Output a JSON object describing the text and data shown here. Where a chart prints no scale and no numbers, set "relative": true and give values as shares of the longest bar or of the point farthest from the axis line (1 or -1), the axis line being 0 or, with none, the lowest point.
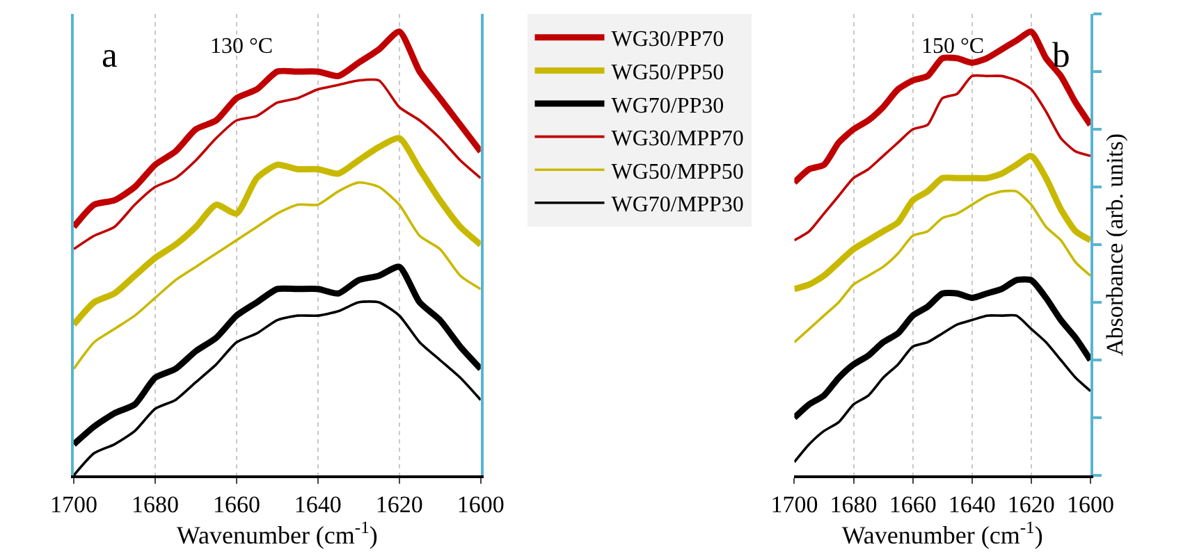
{
  "chart_data": [
    {
      "type": "line",
      "relative": true,
      "xlabel": "Wavenumber (cm$^{-1}$)",
      "annotations": [
        "a",
        "130 °C"
      ],
      "xlim": [
        1700,
        1600
      ],
      "xticks": [
        1700,
        1680,
        1660,
        1640,
        1620,
        1600
      ],
      "grid": "x",
      "legend": "right",
      "tick_labels": "x",
      "line_style": "solid",
      "x": [
        1700,
        1695,
        1690,
        1685,
        1680,
        1675,
        1670,
        1665,
        1660,
        1655,
        1650,
        1645,
        1640,
        1635,
        1630,
        1625,
        1620,
        1615,
        1610,
        1605,
        1600
      ],
      "series": [
        {
          "name": "WG30/PP70",
          "color": "#c00000",
          "values": [
            0.56,
            0.61,
            0.62,
            0.65,
            0.7,
            0.73,
            0.78,
            0.8,
            0.85,
            0.87,
            0.91,
            0.91,
            0.91,
            0.9,
            0.93,
            0.96,
            1.0,
            0.91,
            0.85,
            0.79,
            0.73
          ]
        },
        {
          "name": "WG50/PP50",
          "color": "#c8b900",
          "values": [
            0.34,
            0.39,
            0.41,
            0.45,
            0.49,
            0.52,
            0.56,
            0.61,
            0.59,
            0.67,
            0.7,
            0.69,
            0.69,
            0.68,
            0.71,
            0.74,
            0.76,
            0.69,
            0.62,
            0.56,
            0.52
          ]
        },
        {
          "name": "WG70/PP30",
          "color": "#000000",
          "values": [
            0.07,
            0.11,
            0.14,
            0.16,
            0.22,
            0.24,
            0.28,
            0.31,
            0.36,
            0.39,
            0.42,
            0.42,
            0.42,
            0.41,
            0.44,
            0.45,
            0.47,
            0.39,
            0.35,
            0.29,
            0.24
          ]
        },
        {
          "name": "WG30/MPP70",
          "color": "#c00000",
          "values": [
            0.51,
            0.54,
            0.56,
            0.61,
            0.65,
            0.67,
            0.71,
            0.76,
            0.8,
            0.81,
            0.84,
            0.85,
            0.87,
            0.88,
            0.89,
            0.89,
            0.83,
            0.8,
            0.76,
            0.71,
            0.67
          ]
        },
        {
          "name": "WG50/MPP50",
          "color": "#c8b900",
          "values": [
            0.24,
            0.3,
            0.33,
            0.36,
            0.4,
            0.44,
            0.47,
            0.5,
            0.53,
            0.56,
            0.59,
            0.61,
            0.61,
            0.64,
            0.66,
            0.65,
            0.61,
            0.54,
            0.51,
            0.45,
            0.42
          ]
        },
        {
          "name": "WG70/MPP30",
          "color": "#000000",
          "values": [
            0.0,
            0.05,
            0.07,
            0.1,
            0.15,
            0.17,
            0.21,
            0.25,
            0.3,
            0.32,
            0.35,
            0.36,
            0.36,
            0.37,
            0.39,
            0.39,
            0.36,
            0.3,
            0.26,
            0.22,
            0.17
          ]
        }
      ]
    },
    {
      "type": "line",
      "relative": true,
      "xlabel": "Wavenumber (cm$^{-1}$)",
      "ylabel": "Absorbance (arb. units)",
      "annotations": [
        "150 °C",
        "b"
      ],
      "xlim": [
        1700,
        1600
      ],
      "xticks": [
        1700,
        1680,
        1660,
        1640,
        1620,
        1600
      ],
      "grid": "x",
      "tick_labels": "x",
      "line_style": "solid",
      "x": [
        1700,
        1695,
        1690,
        1685,
        1680,
        1675,
        1670,
        1665,
        1660,
        1655,
        1650,
        1645,
        1640,
        1635,
        1630,
        1625,
        1620,
        1615,
        1610,
        1605,
        1600
      ],
      "series": [
        {
          "color": "#c00000",
          "values": [
            0.66,
            0.69,
            0.7,
            0.75,
            0.78,
            0.8,
            0.83,
            0.87,
            0.89,
            0.9,
            0.94,
            0.94,
            0.93,
            0.94,
            0.96,
            0.98,
            1.0,
            0.94,
            0.9,
            0.84,
            0.79
          ]
        },
        {
          "color": "#c8b900",
          "values": [
            0.42,
            0.43,
            0.45,
            0.48,
            0.51,
            0.53,
            0.55,
            0.57,
            0.62,
            0.64,
            0.67,
            0.67,
            0.67,
            0.67,
            0.68,
            0.7,
            0.72,
            0.67,
            0.6,
            0.55,
            0.53
          ]
        },
        {
          "color": "#000000",
          "values": [
            0.13,
            0.16,
            0.18,
            0.22,
            0.25,
            0.27,
            0.3,
            0.32,
            0.36,
            0.38,
            0.41,
            0.41,
            0.4,
            0.41,
            0.42,
            0.44,
            0.44,
            0.4,
            0.35,
            0.31,
            0.26
          ]
        },
        {
          "color": "#c00000",
          "values": [
            0.53,
            0.55,
            0.59,
            0.63,
            0.67,
            0.69,
            0.72,
            0.75,
            0.78,
            0.79,
            0.85,
            0.86,
            0.9,
            0.9,
            0.9,
            0.89,
            0.87,
            0.82,
            0.76,
            0.73,
            0.72
          ]
        },
        {
          "color": "#c8b900",
          "values": [
            0.3,
            0.33,
            0.36,
            0.39,
            0.43,
            0.45,
            0.47,
            0.5,
            0.54,
            0.55,
            0.58,
            0.59,
            0.61,
            0.63,
            0.64,
            0.64,
            0.61,
            0.56,
            0.53,
            0.48,
            0.45
          ]
        },
        {
          "color": "#000000",
          "values": [
            0.03,
            0.07,
            0.1,
            0.12,
            0.16,
            0.18,
            0.22,
            0.25,
            0.29,
            0.3,
            0.32,
            0.34,
            0.35,
            0.36,
            0.36,
            0.36,
            0.33,
            0.3,
            0.26,
            0.22,
            0.19
          ]
        }
      ]
    }
  ]
}
